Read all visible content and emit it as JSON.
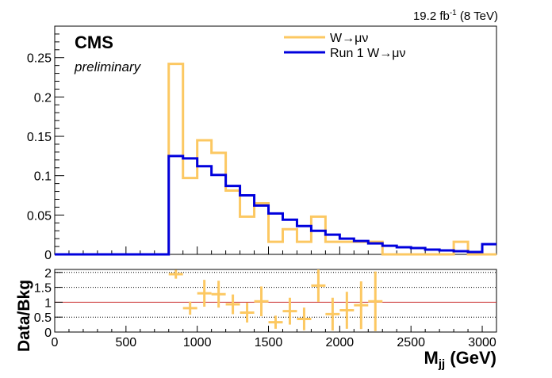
{
  "header": {
    "lumi_value": "19.2 fb",
    "lumi_exp": "-1",
    "lumi_energy": " (8 TeV)",
    "experiment": "CMS",
    "status": "preliminary"
  },
  "colors": {
    "orange": "#fcc862",
    "blue": "#0000dd",
    "ratio_line": "#cc3333"
  },
  "chart_data": [
    {
      "type": "line",
      "style": "step-histogram",
      "title": "",
      "xlabel": "",
      "ylabel": "",
      "xlim": [
        0,
        3100
      ],
      "ylim": [
        0,
        0.29
      ],
      "yticks": [
        {
          "v": 0,
          "label": "0"
        },
        {
          "v": 0.05,
          "label": "0.05"
        },
        {
          "v": 0.1,
          "label": "0.1"
        },
        {
          "v": 0.15,
          "label": "0.15"
        },
        {
          "v": 0.2,
          "label": "0.2"
        },
        {
          "v": 0.25,
          "label": "0.25"
        }
      ],
      "legend": "top-right",
      "series": [
        {
          "name": "W→μν",
          "color": "#fcc862",
          "edges": [
            0,
            800,
            900,
            1000,
            1100,
            1200,
            1300,
            1400,
            1500,
            1600,
            1700,
            1800,
            1900,
            2000,
            2100,
            2200,
            2300,
            2400,
            2500,
            2600,
            2700,
            2800,
            2900,
            3000,
            3100
          ],
          "values": [
            0,
            0.242,
            0.097,
            0.145,
            0.129,
            0.081,
            0.048,
            0.065,
            0.016,
            0.032,
            0.016,
            0.048,
            0.016,
            0.016,
            0.016,
            0.016,
            0,
            0,
            0,
            0,
            0,
            0.016,
            0,
            0
          ]
        },
        {
          "name": "Run 1 W→μν",
          "color": "#0000dd",
          "edges": [
            0,
            800,
            900,
            1000,
            1100,
            1200,
            1300,
            1400,
            1500,
            1600,
            1700,
            1800,
            1900,
            2000,
            2100,
            2200,
            2300,
            2400,
            2500,
            2600,
            2700,
            2800,
            2900,
            3000,
            3100
          ],
          "values": [
            0,
            0.125,
            0.122,
            0.112,
            0.101,
            0.087,
            0.075,
            0.062,
            0.052,
            0.044,
            0.036,
            0.03,
            0.025,
            0.02,
            0.017,
            0.014,
            0.011,
            0.009,
            0.008,
            0.006,
            0.005,
            0.004,
            0.003,
            0.013
          ]
        }
      ]
    },
    {
      "type": "scatter",
      "style": "ratio-with-errors",
      "xlabel": "M",
      "xlabel_sub": "jj",
      "xlabel_unit": " (GeV)",
      "ylabel": "Data/Bkg",
      "xlim": [
        0,
        3100
      ],
      "ylim": [
        0,
        2.1
      ],
      "yticks": [
        {
          "v": 0,
          "label": "0"
        },
        {
          "v": 0.5,
          "label": "0.5"
        },
        {
          "v": 1,
          "label": "1"
        },
        {
          "v": 1.5,
          "label": "1.5"
        },
        {
          "v": 2,
          "label": "2"
        }
      ],
      "xticks": [
        {
          "v": 0,
          "label": "0"
        },
        {
          "v": 500,
          "label": "500"
        },
        {
          "v": 1000,
          "label": "1000"
        },
        {
          "v": 1500,
          "label": "1500"
        },
        {
          "v": 2000,
          "label": "2000"
        },
        {
          "v": 2500,
          "label": "2500"
        },
        {
          "v": 3000,
          "label": "3000"
        }
      ],
      "grid_lines": [
        0.5,
        1.5
      ],
      "reference_line": 1,
      "points": [
        {
          "x": 850,
          "y": 1.94,
          "err": 0.15,
          "xerr": 50
        },
        {
          "x": 950,
          "y": 0.8,
          "err": 0.22,
          "xerr": 50
        },
        {
          "x": 1050,
          "y": 1.3,
          "err": 0.45,
          "xerr": 50
        },
        {
          "x": 1150,
          "y": 1.27,
          "err": 0.45,
          "xerr": 50
        },
        {
          "x": 1250,
          "y": 0.93,
          "err": 0.33,
          "xerr": 50
        },
        {
          "x": 1350,
          "y": 0.65,
          "err": 0.33,
          "xerr": 50
        },
        {
          "x": 1450,
          "y": 1.03,
          "err": 0.5,
          "xerr": 50
        },
        {
          "x": 1550,
          "y": 0.33,
          "err": 0.22,
          "xerr": 50
        },
        {
          "x": 1650,
          "y": 0.7,
          "err": 0.45,
          "xerr": 50
        },
        {
          "x": 1750,
          "y": 0.44,
          "err": 0.38,
          "xerr": 50
        },
        {
          "x": 1850,
          "y": 1.56,
          "err": 0.55,
          "xerr": 50
        },
        {
          "x": 1950,
          "y": 0.6,
          "err": 0.55,
          "xerr": 50
        },
        {
          "x": 2050,
          "y": 0.73,
          "err": 0.62,
          "xerr": 50
        },
        {
          "x": 2150,
          "y": 0.9,
          "err": 0.8,
          "xerr": 50
        },
        {
          "x": 2250,
          "y": 1.03,
          "err": 1.0,
          "xerr": 50
        }
      ]
    }
  ]
}
